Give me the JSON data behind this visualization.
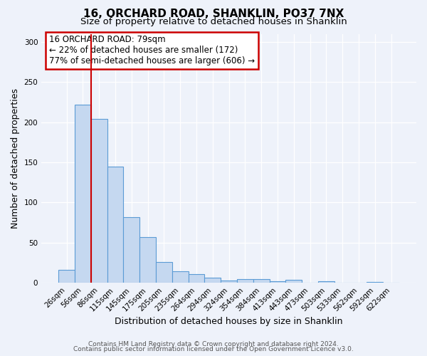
{
  "title": "16, ORCHARD ROAD, SHANKLIN, PO37 7NX",
  "subtitle": "Size of property relative to detached houses in Shanklin",
  "xlabel": "Distribution of detached houses by size in Shanklin",
  "ylabel": "Number of detached properties",
  "bin_labels": [
    "26sqm",
    "56sqm",
    "86sqm",
    "115sqm",
    "145sqm",
    "175sqm",
    "205sqm",
    "235sqm",
    "264sqm",
    "294sqm",
    "324sqm",
    "354sqm",
    "384sqm",
    "413sqm",
    "443sqm",
    "473sqm",
    "503sqm",
    "533sqm",
    "562sqm",
    "592sqm",
    "622sqm"
  ],
  "bar_heights": [
    16,
    222,
    204,
    145,
    82,
    57,
    26,
    14,
    11,
    6,
    3,
    5,
    5,
    2,
    4,
    0,
    2,
    0,
    0,
    1,
    0
  ],
  "bar_color": "#c5d8f0",
  "bar_edge_color": "#5b9bd5",
  "vline_color": "#cc0000",
  "annotation_box_text": "16 ORCHARD ROAD: 79sqm\n← 22% of detached houses are smaller (172)\n77% of semi-detached houses are larger (606) →",
  "annotation_box_edge_color": "#cc0000",
  "ylim": [
    0,
    310
  ],
  "yticks": [
    0,
    50,
    100,
    150,
    200,
    250,
    300
  ],
  "footer_line1": "Contains HM Land Registry data © Crown copyright and database right 2024.",
  "footer_line2": "Contains public sector information licensed under the Open Government Licence v3.0.",
  "background_color": "#eef2fa",
  "plot_bg_color": "#eef2fa",
  "title_fontsize": 11,
  "subtitle_fontsize": 9.5,
  "axis_label_fontsize": 9,
  "tick_fontsize": 7.5,
  "annotation_fontsize": 8.5,
  "footer_fontsize": 6.5
}
